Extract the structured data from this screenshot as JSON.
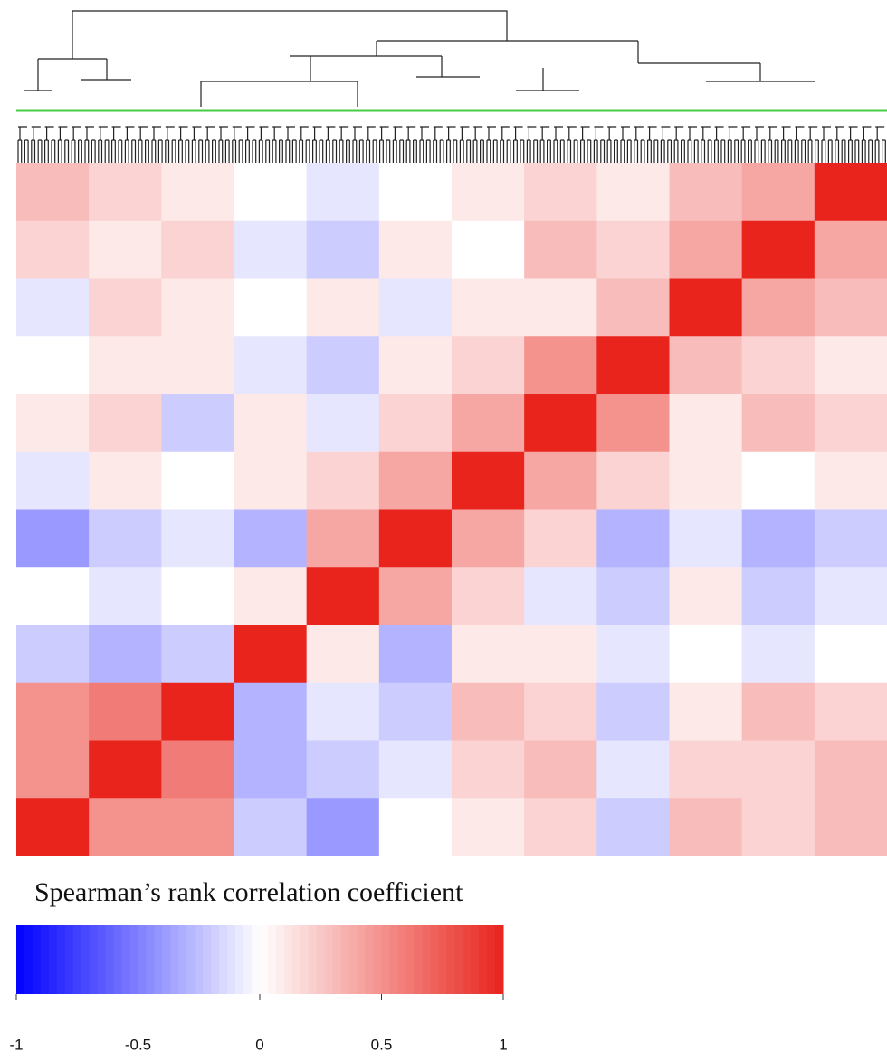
{
  "chart_data": {
    "type": "heatmap",
    "title": "Spearman’s rank correlation coefficient",
    "z": [
      [
        0.3,
        0.2,
        0.1,
        0,
        -0.1,
        0,
        0.1,
        0.2,
        0.1,
        0.3,
        0.4,
        1
      ],
      [
        0.2,
        0.1,
        0.2,
        -0.1,
        -0.2,
        0.1,
        0,
        0.3,
        0.2,
        0.4,
        1,
        0.4
      ],
      [
        -0.1,
        0.2,
        0.1,
        0,
        0.1,
        -0.1,
        0.1,
        0.1,
        0.3,
        1,
        0.4,
        0.3
      ],
      [
        0,
        0.1,
        0.1,
        -0.1,
        -0.2,
        0.1,
        0.2,
        0.5,
        1,
        0.3,
        0.2,
        0.1
      ],
      [
        0.1,
        0.2,
        -0.2,
        0.1,
        -0.1,
        0.2,
        0.4,
        1,
        0.5,
        0.1,
        0.3,
        0.2
      ],
      [
        -0.1,
        0.1,
        0,
        0.1,
        0.2,
        0.4,
        1,
        0.4,
        0.2,
        0.1,
        0,
        0.1
      ],
      [
        -0.4,
        -0.2,
        -0.1,
        -0.3,
        0.4,
        1,
        0.4,
        0.2,
        -0.3,
        -0.1,
        -0.3,
        -0.2
      ],
      [
        0,
        -0.1,
        0,
        0.1,
        1,
        0.4,
        0.2,
        -0.1,
        -0.2,
        0.1,
        -0.2,
        -0.1
      ],
      [
        -0.2,
        -0.3,
        -0.2,
        1,
        0.1,
        -0.3,
        0.1,
        0.1,
        -0.1,
        0,
        -0.1,
        0
      ],
      [
        0.5,
        0.6,
        1,
        -0.3,
        -0.1,
        -0.2,
        0.3,
        0.2,
        -0.2,
        0.1,
        0.3,
        0.2
      ],
      [
        0.5,
        1,
        0.6,
        -0.3,
        -0.2,
        -0.1,
        0.2,
        0.3,
        -0.1,
        0.2,
        0.2,
        0.3
      ],
      [
        1,
        0.5,
        0.5,
        -0.2,
        -0.4,
        0,
        0.1,
        0.2,
        -0.2,
        0.3,
        0.2,
        0.3
      ]
    ],
    "zlim": [
      -1,
      1
    ],
    "zticks": [
      -1,
      -0.5,
      0,
      0.5,
      1
    ],
    "colors": [
      "#0000ff",
      "#ffffff",
      "#e8241c"
    ],
    "cut_line_color": "#44cc44"
  }
}
